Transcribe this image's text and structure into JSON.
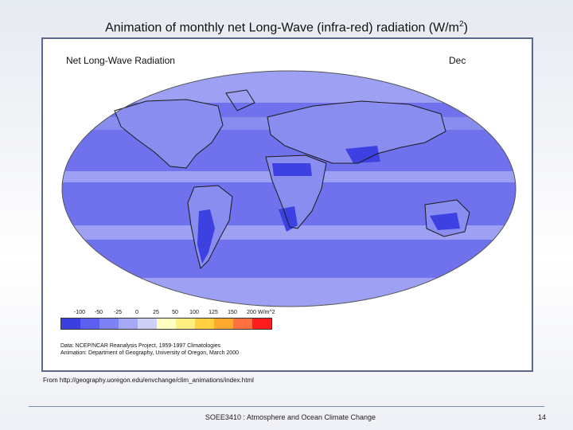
{
  "slide": {
    "title_main": "Animation of monthly net Long-Wave (infra-red) radiation (W/m",
    "title_sup": "2",
    "title_close": ")"
  },
  "figure": {
    "map_title": "Net Long-Wave Radiation",
    "month": "Dec",
    "colorbar": {
      "tick_labels": [
        "-100",
        "-50",
        "-25",
        "0",
        "25",
        "50",
        "100",
        "125",
        "150",
        "200"
      ],
      "unit": "W/m^2",
      "swatch_colors": [
        "#3b3fe0",
        "#5c5ff0",
        "#7f82f2",
        "#a5a8f5",
        "#cfd0f8",
        "#ffffc0",
        "#ffee80",
        "#ffd040",
        "#ffa830",
        "#ff7040",
        "#ff1c1c"
      ],
      "colors": {
        "ocean": "#6f72ec",
        "light_band": "#9ea1f3",
        "dark_region": "#3d41e2",
        "coast": "#1a1a1a"
      }
    },
    "credit_line1": "Data:  NCEP/NCAR Reanalysis Project, 1959-1997 Climatologies",
    "credit_line2": "Animation:  Department of Geography, University of Oregon, March 2000"
  },
  "source": "From http://geography.uoregon.edu/envchange/clim_animations/index.html",
  "footer": {
    "course": "SOEE3410 : Atmosphere and Ocean Climate Change",
    "page": "14"
  }
}
